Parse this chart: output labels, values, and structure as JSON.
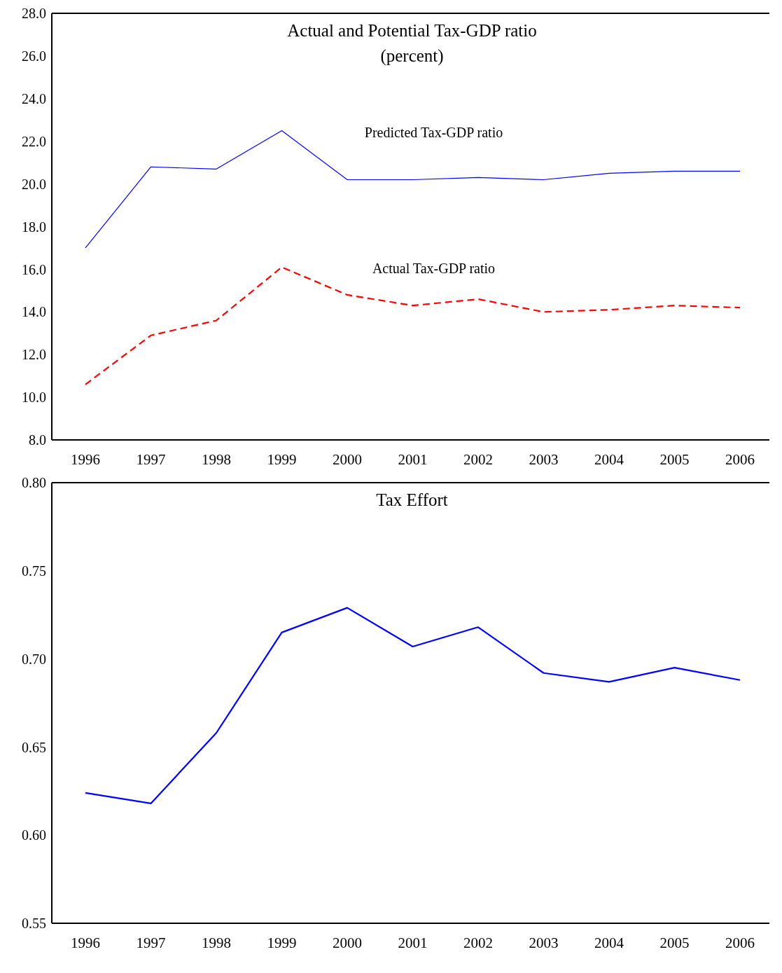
{
  "chart_data": [
    {
      "type": "line",
      "title": "Actual and Potential Tax-GDP ratio",
      "subtitle": "(percent)",
      "categories": [
        "1996",
        "1997",
        "1998",
        "1999",
        "2000",
        "2001",
        "2002",
        "2003",
        "2004",
        "2005",
        "2006"
      ],
      "series": [
        {
          "name": "Predicted Tax-GDP ratio",
          "color": "#0000ff",
          "line_style": "solid",
          "values": [
            17.0,
            20.8,
            20.7,
            22.5,
            20.2,
            20.2,
            20.3,
            20.2,
            20.5,
            20.6,
            20.6
          ]
        },
        {
          "name": "Actual Tax-GDP ratio",
          "color": "#ff0000",
          "line_style": "dashed",
          "values": [
            10.6,
            12.9,
            13.6,
            16.1,
            14.8,
            14.3,
            14.6,
            14.0,
            14.1,
            14.3,
            14.2
          ]
        }
      ],
      "ylim": [
        8,
        28
      ],
      "yticks": [
        {
          "value": 8,
          "label": "8.0"
        },
        {
          "value": 10,
          "label": "10.0"
        },
        {
          "value": 12,
          "label": "12.0"
        },
        {
          "value": 14,
          "label": "14.0"
        },
        {
          "value": 16,
          "label": "16.0"
        },
        {
          "value": 18,
          "label": "18.0"
        },
        {
          "value": 20,
          "label": "20.0"
        },
        {
          "value": 22,
          "label": "22.0"
        },
        {
          "value": 24,
          "label": "24.0"
        },
        {
          "value": 26,
          "label": "26.0"
        },
        {
          "value": 28,
          "label": "28.0"
        }
      ],
      "grid": false,
      "legend": false,
      "marker": "none"
    },
    {
      "type": "line",
      "title": "Tax Effort",
      "categories": [
        "1996",
        "1997",
        "1998",
        "1999",
        "2000",
        "2001",
        "2002",
        "2003",
        "2004",
        "2005",
        "2006"
      ],
      "series": [
        {
          "color": "#0000ff",
          "line_style": "solid",
          "values": [
            0.624,
            0.618,
            0.658,
            0.715,
            0.729,
            0.707,
            0.718,
            0.692,
            0.687,
            0.695,
            0.688
          ]
        }
      ],
      "ylim": [
        0.55,
        0.8
      ],
      "yticks": [
        {
          "value": 0.55,
          "label": "0.55"
        },
        {
          "value": 0.6,
          "label": "0.60"
        },
        {
          "value": 0.65,
          "label": "0.65"
        },
        {
          "value": 0.7,
          "label": "0.70"
        },
        {
          "value": 0.75,
          "label": "0.75"
        },
        {
          "value": 0.8,
          "label": "0.80"
        }
      ],
      "grid": false,
      "legend": false,
      "marker": "none"
    }
  ]
}
